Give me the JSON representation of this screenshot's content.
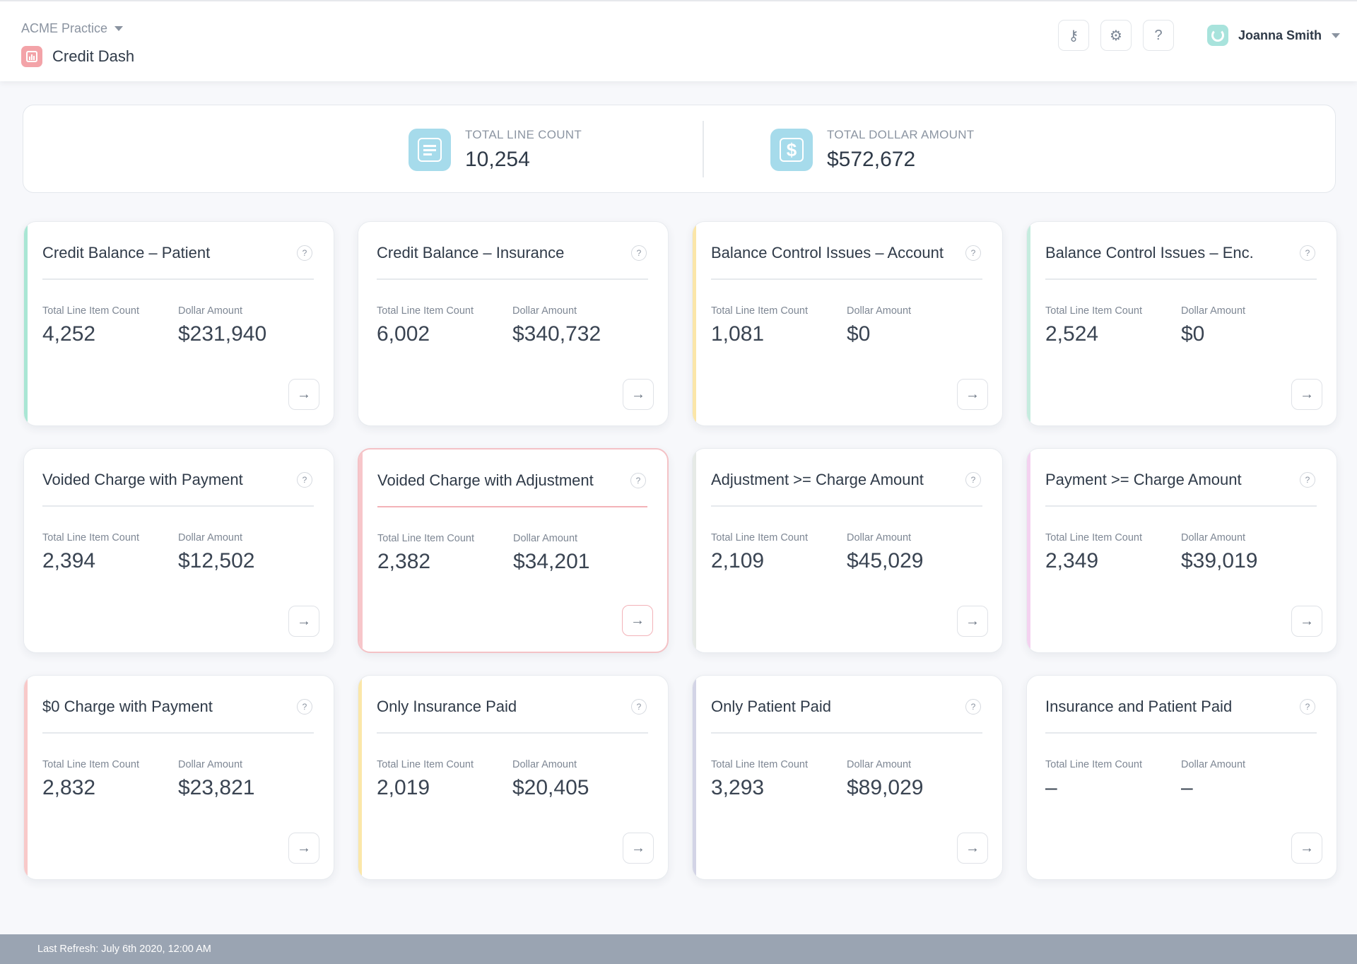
{
  "header": {
    "practice_name": "ACME Practice",
    "app_title": "Credit Dash",
    "key_icon_glyph": "⚷",
    "filters_icon_glyph": "⚙",
    "help_glyph": "?",
    "user_name": "Joanna Smith"
  },
  "summary": {
    "line_count_label": "TOTAL LINE COUNT",
    "line_count_value": "10,254",
    "dollar_label": "TOTAL DOLLAR AMOUNT",
    "dollar_value": "$572,672",
    "dollar_icon_glyph": "$"
  },
  "card_labels": {
    "count": "Total Line Item Count",
    "amount": "Dollar Amount",
    "help": "?",
    "arrow": "→"
  },
  "cards": [
    {
      "title": "Credit Balance – Patient",
      "count": "4,252",
      "amount": "$231,940",
      "accent": "#a9e6d4"
    },
    {
      "title": "Credit Balance – Insurance",
      "count": "6,002",
      "amount": "$340,732",
      "accent": "#ffffff"
    },
    {
      "title": "Balance Control Issues – Account",
      "count": "1,081",
      "amount": "$0",
      "accent": "#fbe6a8"
    },
    {
      "title": "Balance Control Issues – Enc.",
      "count": "2,524",
      "amount": "$0",
      "accent": "#c6ecdf"
    },
    {
      "title": "Voided Charge with Payment",
      "count": "2,394",
      "amount": "$12,502",
      "accent": "#ffffff"
    },
    {
      "title": "Voided Charge with Adjustment",
      "count": "2,382",
      "amount": "$34,201",
      "accent": "#f7c6ca"
    },
    {
      "title": "Adjustment >= Charge Amount",
      "count": "2,109",
      "amount": "$45,029",
      "accent": "#e6eae6"
    },
    {
      "title": "Payment >= Charge Amount",
      "count": "2,349",
      "amount": "$39,019",
      "accent": "#f4d2f0"
    },
    {
      "title": "$0 Charge with Payment",
      "count": "2,832",
      "amount": "$23,821",
      "accent": "#f8c9c9"
    },
    {
      "title": "Only Insurance Paid",
      "count": "2,019",
      "amount": "$20,405",
      "accent": "#fbe7a9"
    },
    {
      "title": "Only Patient Paid",
      "count": "3,293",
      "amount": "$89,029",
      "accent": "#d3d4e6"
    },
    {
      "title": "Insurance and Patient Paid",
      "count": "–",
      "amount": "–",
      "accent": "#ffffff"
    }
  ],
  "footer": {
    "last_refresh": "Last Refresh: July 6th 2020, 12:00 AM"
  }
}
